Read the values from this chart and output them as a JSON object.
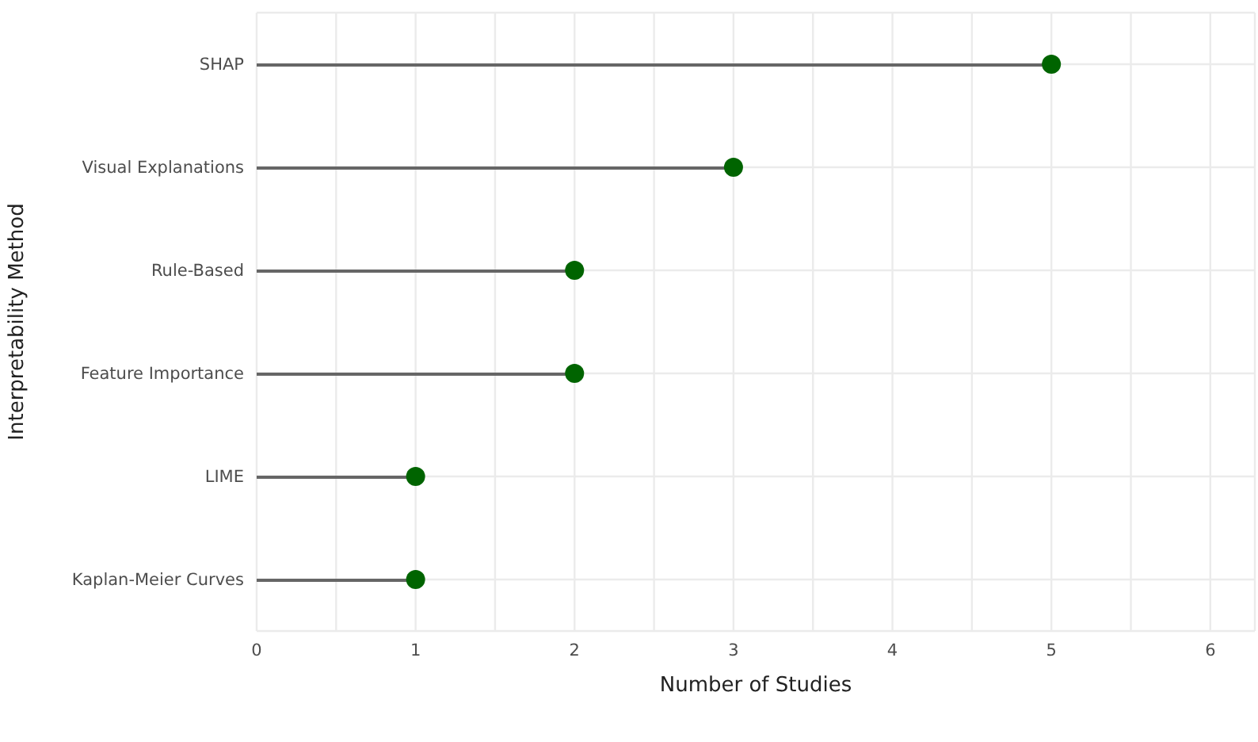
{
  "chart_data": {
    "type": "lollipop",
    "orientation": "horizontal",
    "xlabel": "Number of Studies",
    "ylabel": "Interpretability Method",
    "categories": [
      "SHAP",
      "Visual Explanations",
      "Rule-Based",
      "Feature Importance",
      "LIME",
      "Kaplan-Meier Curves"
    ],
    "values": [
      5,
      3,
      2,
      2,
      1,
      1
    ],
    "color": "#006400",
    "xlim": [
      0,
      6.28
    ],
    "xticks": [
      0,
      {
        "value": 0.5,
        "label": null
      },
      1,
      {
        "value": 1.5,
        "label": null
      },
      2,
      {
        "value": 2.5,
        "label": null
      },
      3,
      {
        "value": 3.5,
        "label": null
      },
      4,
      {
        "value": 4.5,
        "label": null
      },
      5,
      {
        "value": 5.5,
        "label": null
      },
      6
    ],
    "grid": true
  }
}
